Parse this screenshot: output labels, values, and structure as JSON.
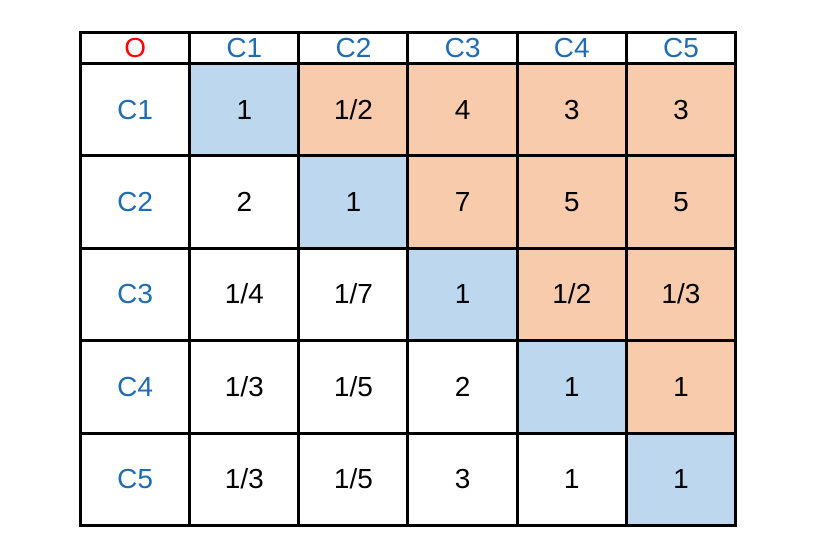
{
  "table": {
    "corner_label": "O",
    "column_headers": [
      "C1",
      "C2",
      "C3",
      "C4",
      "C5"
    ],
    "rows": [
      {
        "label": "C1",
        "cells": [
          {
            "value": "1",
            "bg": "diagonal"
          },
          {
            "value": "1/2",
            "bg": "upper"
          },
          {
            "value": "4",
            "bg": "upper"
          },
          {
            "value": "3",
            "bg": "upper"
          },
          {
            "value": "3",
            "bg": "upper"
          }
        ]
      },
      {
        "label": "C2",
        "cells": [
          {
            "value": "2",
            "bg": "lower"
          },
          {
            "value": "1",
            "bg": "diagonal"
          },
          {
            "value": "7",
            "bg": "upper"
          },
          {
            "value": "5",
            "bg": "upper"
          },
          {
            "value": "5",
            "bg": "upper"
          }
        ]
      },
      {
        "label": "C3",
        "cells": [
          {
            "value": "1/4",
            "bg": "lower"
          },
          {
            "value": "1/7",
            "bg": "lower"
          },
          {
            "value": "1",
            "bg": "diagonal"
          },
          {
            "value": "1/2",
            "bg": "upper"
          },
          {
            "value": "1/3",
            "bg": "upper"
          }
        ]
      },
      {
        "label": "C4",
        "cells": [
          {
            "value": "1/3",
            "bg": "lower"
          },
          {
            "value": "1/5",
            "bg": "lower"
          },
          {
            "value": "2",
            "bg": "lower"
          },
          {
            "value": "1",
            "bg": "diagonal"
          },
          {
            "value": "1",
            "bg": "upper"
          }
        ]
      },
      {
        "label": "C5",
        "cells": [
          {
            "value": "1/3",
            "bg": "lower"
          },
          {
            "value": "1/5",
            "bg": "lower"
          },
          {
            "value": "3",
            "bg": "lower"
          },
          {
            "value": "1",
            "bg": "lower"
          },
          {
            "value": "1",
            "bg": "diagonal"
          }
        ]
      }
    ]
  },
  "colors": {
    "diagonal": "#BDD7EE",
    "upper": "#F8CBAD",
    "lower": "#FFFFFF",
    "border": "#000000",
    "corner_text": "#FF0000",
    "header_text": "#1F6CB4",
    "value_text": "#000000"
  }
}
